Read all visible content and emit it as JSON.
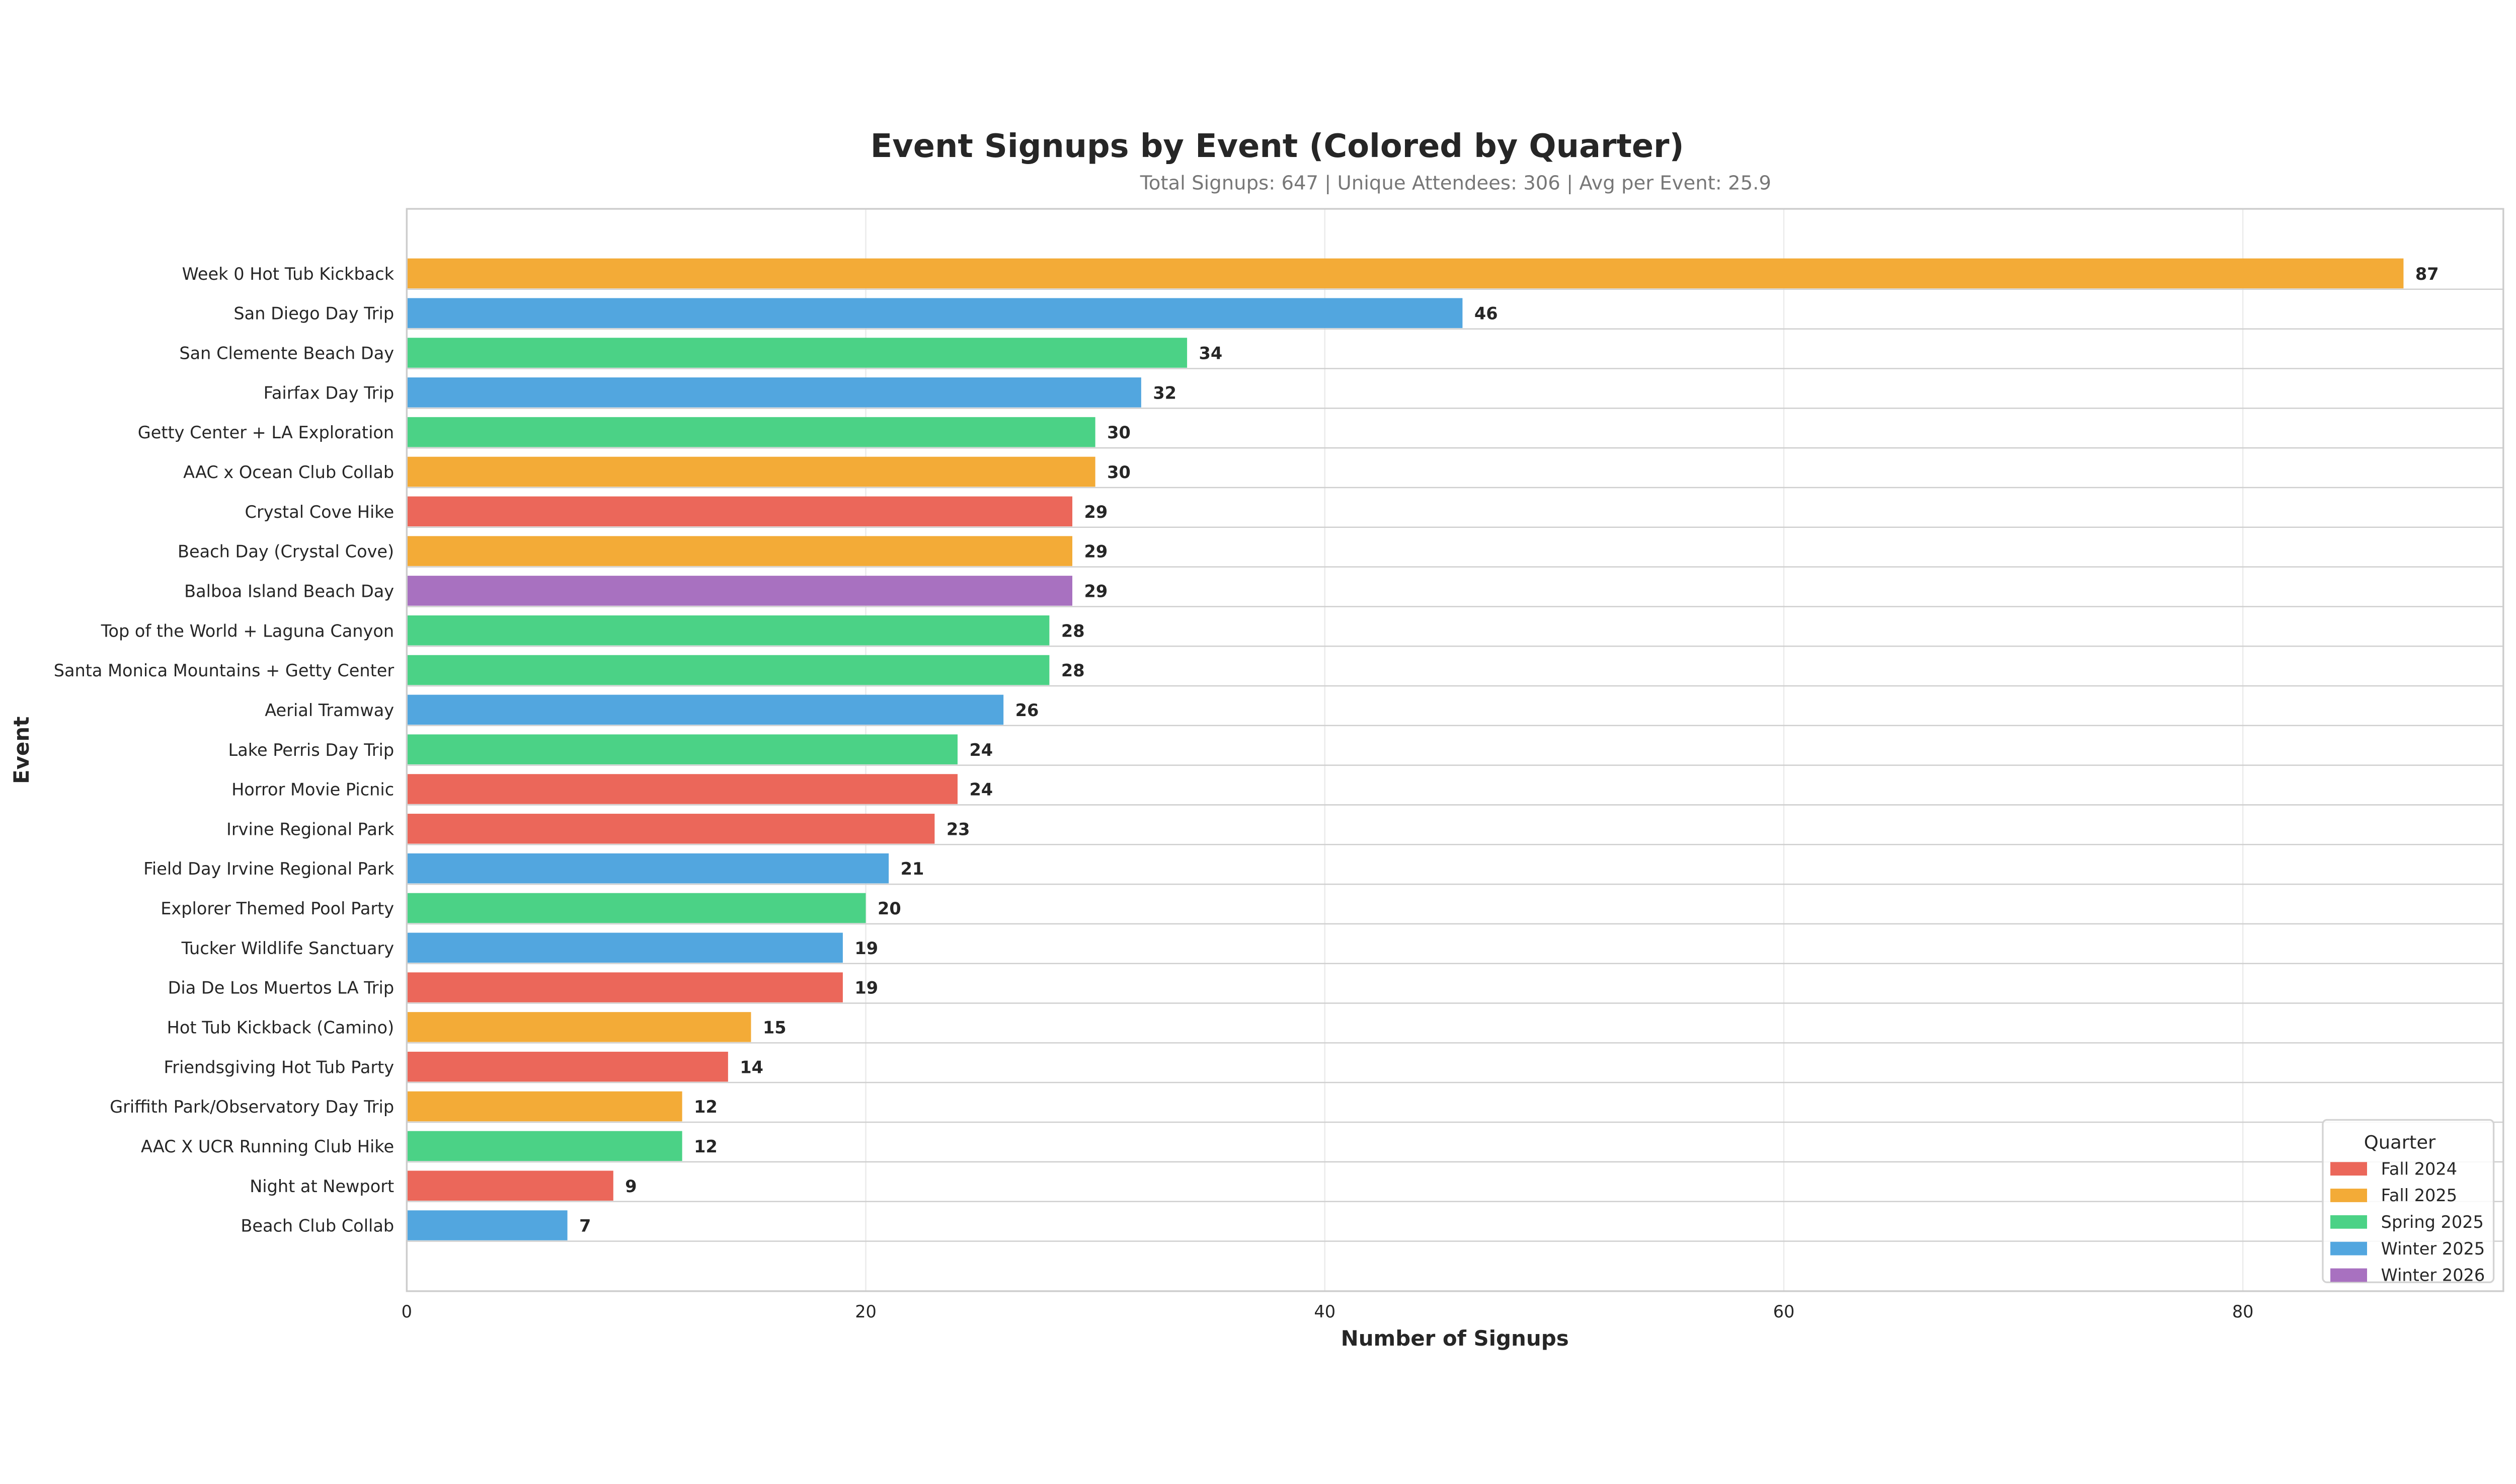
{
  "chart_data": {
    "type": "bar",
    "orientation": "horizontal",
    "title": "Event Signups by Event (Colored by Quarter)",
    "subtitle": "Total Signups: 647 | Unique Attendees: 306 | Avg per Event: 25.9",
    "xlabel": "Number of Signups",
    "ylabel": "Event",
    "xlim": [
      0,
      91.35
    ],
    "xticks": [
      0,
      20,
      40,
      60,
      80
    ],
    "grid": true,
    "legend": {
      "title": "Quarter",
      "placement": "lower-right",
      "entries": [
        "Fall 2024",
        "Fall 2025",
        "Spring 2025",
        "Winter 2025",
        "Winter 2026"
      ]
    },
    "colors": {
      "Fall 2024": "#eb675a",
      "Fall 2025": "#f3ab37",
      "Spring 2025": "#4bd286",
      "Winter 2025": "#52a6df",
      "Winter 2026": "#a871c0"
    },
    "categories": [
      "Week 0 Hot Tub Kickback",
      "San Diego Day Trip",
      "San Clemente Beach Day",
      "Fairfax Day Trip",
      "Getty Center + LA Exploration",
      "AAC x Ocean Club Collab",
      "Crystal Cove Hike",
      "Beach Day (Crystal Cove)",
      "Balboa Island Beach Day",
      "Top of the World + Laguna Canyon",
      "Santa Monica Mountains + Getty Center",
      "Aerial Tramway",
      "Lake Perris Day Trip",
      "Horror Movie Picnic",
      "Irvine Regional Park",
      "Field Day Irvine Regional Park",
      "Explorer Themed Pool Party",
      "Tucker Wildlife Sanctuary",
      "Dia De Los Muertos LA Trip",
      "Hot Tub Kickback (Camino)",
      "Friendsgiving Hot Tub Party",
      "Griffith Park/Observatory Day Trip",
      "AAC X UCR Running Club Hike",
      "Night at Newport",
      "Beach Club Collab"
    ],
    "values": [
      87,
      46,
      34,
      32,
      30,
      30,
      29,
      29,
      29,
      28,
      28,
      26,
      24,
      24,
      23,
      21,
      20,
      19,
      19,
      15,
      14,
      12,
      12,
      9,
      7
    ],
    "quarters": [
      "Fall 2025",
      "Winter 2025",
      "Spring 2025",
      "Winter 2025",
      "Spring 2025",
      "Fall 2025",
      "Fall 2024",
      "Fall 2025",
      "Winter 2026",
      "Spring 2025",
      "Spring 2025",
      "Winter 2025",
      "Spring 2025",
      "Fall 2024",
      "Fall 2024",
      "Winter 2025",
      "Spring 2025",
      "Winter 2025",
      "Fall 2024",
      "Fall 2025",
      "Fall 2024",
      "Fall 2025",
      "Spring 2025",
      "Fall 2024",
      "Winter 2025"
    ]
  }
}
